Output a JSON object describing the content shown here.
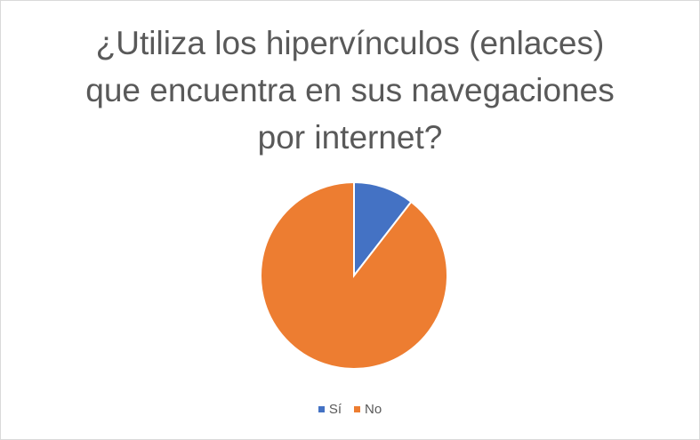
{
  "chart_data": {
    "type": "pie",
    "title_lines": [
      "¿Utiliza los hipervínculos (enlaces)",
      "que encuentra en sus navegaciones",
      "por internet?"
    ],
    "categories": [
      "Sí",
      "No"
    ],
    "values": [
      10.5,
      89.5
    ],
    "colors": [
      "#4472c4",
      "#ed7d31"
    ],
    "legend_position": "bottom"
  }
}
